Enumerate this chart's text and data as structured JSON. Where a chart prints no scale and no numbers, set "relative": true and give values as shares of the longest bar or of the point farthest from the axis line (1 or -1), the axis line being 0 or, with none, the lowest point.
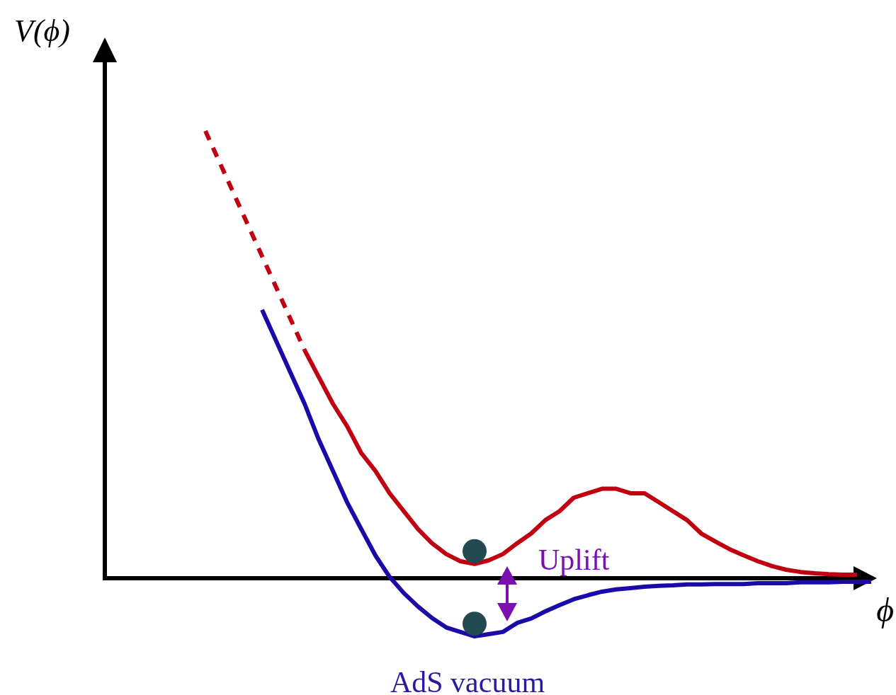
{
  "chart_data": {
    "type": "line",
    "relative": true,
    "xlabel": "ϕ",
    "ylabel": "V(ϕ)",
    "categories": [
      null,
      null,
      null,
      null,
      null,
      null,
      null,
      null,
      null,
      null,
      null,
      null,
      null,
      null,
      null,
      null,
      null,
      null,
      null,
      null,
      null,
      null,
      null,
      null,
      null,
      null,
      null,
      null,
      null,
      null,
      null,
      null,
      null,
      null,
      null,
      null,
      null,
      null,
      null,
      null,
      null,
      null,
      null,
      null,
      null,
      null,
      null,
      null,
      null,
      null,
      null,
      null,
      null,
      null,
      null
    ],
    "series": [
      {
        "color": "#c00010",
        "line_style": "dashed",
        "values": [
          null,
          null,
          null,
          null,
          null,
          null,
          null,
          1,
          0.93,
          0.86,
          0.79,
          0.72,
          0.65,
          0.58,
          0.51,
          null,
          null,
          null,
          null,
          null,
          null,
          null,
          null,
          null,
          null,
          null,
          null,
          null,
          null,
          null,
          null,
          null,
          null,
          null,
          null,
          null,
          null,
          null,
          null,
          null,
          null,
          null,
          null,
          null,
          null,
          null,
          null,
          null,
          null,
          null,
          null,
          null,
          null,
          null,
          null
        ]
      },
      {
        "color": "#c00010",
        "line_style": "solid",
        "values": [
          null,
          null,
          null,
          null,
          null,
          null,
          null,
          null,
          null,
          null,
          null,
          null,
          null,
          null,
          0.51,
          0.45,
          0.39,
          0.34,
          0.28,
          0.24,
          0.19,
          0.15,
          0.11,
          0.078,
          0.054,
          0.038,
          0.032,
          0.04,
          0.054,
          0.078,
          0.1,
          0.13,
          0.15,
          0.18,
          0.19,
          0.2,
          0.2,
          0.19,
          0.19,
          0.17,
          0.15,
          0.13,
          0.1,
          0.082,
          0.065,
          0.051,
          0.038,
          0.027,
          0.019,
          0.014,
          0.011,
          0.009,
          0.008,
          0.008,
          null
        ]
      },
      {
        "color": "#1a0aa8",
        "line_style": "solid",
        "values": [
          null,
          null,
          null,
          null,
          null,
          null,
          null,
          null,
          null,
          null,
          null,
          0.6,
          0.53,
          0.46,
          0.39,
          0.31,
          0.24,
          0.17,
          0.11,
          0.051,
          0.003,
          -0.033,
          -0.063,
          -0.089,
          -0.11,
          -0.12,
          -0.13,
          -0.125,
          -0.12,
          -0.1,
          -0.09,
          -0.074,
          -0.06,
          -0.047,
          -0.038,
          -0.03,
          -0.025,
          -0.022,
          -0.019,
          -0.017,
          -0.016,
          -0.014,
          -0.014,
          -0.013,
          -0.013,
          -0.013,
          -0.011,
          -0.011,
          -0.011,
          -0.009,
          -0.009,
          -0.009,
          -0.008,
          -0.008,
          -0.008
        ]
      }
    ],
    "annotations": [
      "Uplift",
      "AdS vacuum"
    ]
  }
}
